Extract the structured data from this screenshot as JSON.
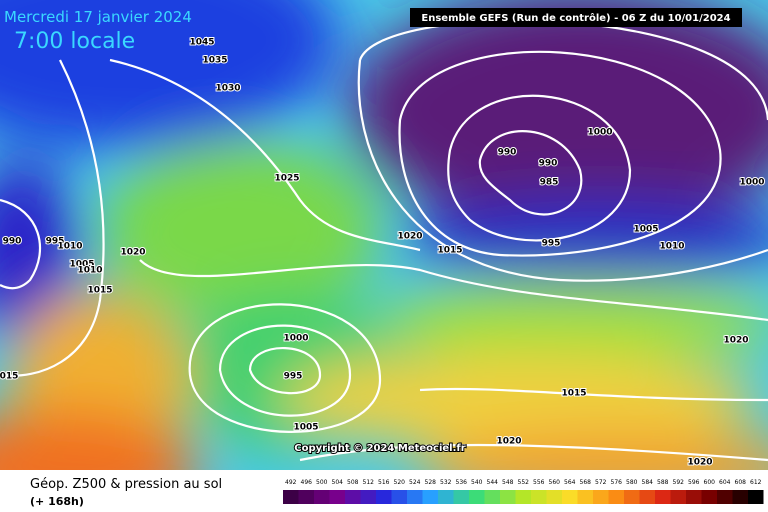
{
  "title": "Mercredi 17 janvier 2024",
  "subtitle": "7:00 locale",
  "header": "Ensemble GEFS  (Run de contrôle)  -  06 Z du 10/01/2024",
  "copyright": "Copyright © 2024 Meteociel.fr",
  "footer": {
    "title": "Géop. Z500 & pression au sol",
    "lead": "(+ 168h)"
  },
  "scale": [
    492,
    496,
    500,
    504,
    508,
    512,
    516,
    520,
    524,
    528,
    532,
    536,
    540,
    544,
    548,
    552,
    556,
    560,
    564,
    568,
    572,
    576,
    580,
    584,
    588,
    592,
    596,
    600,
    604,
    608,
    612
  ],
  "isobar_labels": [
    "1045",
    "1035",
    "1030",
    "1025",
    "1020",
    "1015",
    "990",
    "990",
    "985",
    "995",
    "1000",
    "1000",
    "1005",
    "1010",
    "990",
    "995",
    "1010",
    "1020",
    "1005",
    "1010",
    "1015",
    "015",
    "1000",
    "995",
    "1005",
    "1020",
    "1015",
    "1020",
    "1020"
  ]
}
